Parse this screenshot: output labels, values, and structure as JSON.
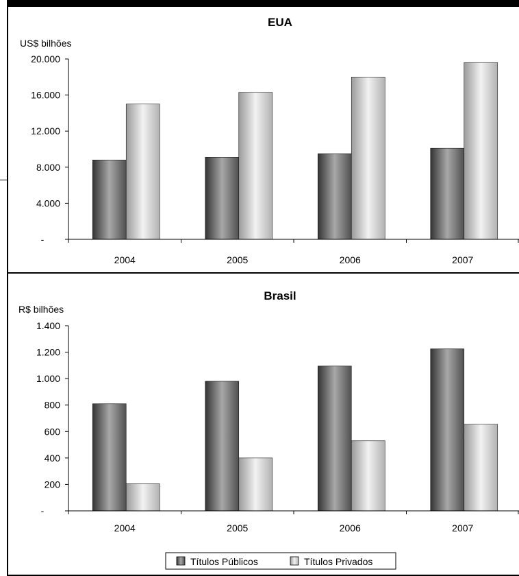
{
  "chart_data": [
    {
      "type": "bar",
      "title": "EUA",
      "ylabel": "US$ bilhões",
      "categories": [
        "2004",
        "2005",
        "2006",
        "2007"
      ],
      "ylim": [
        0,
        20000
      ],
      "yticks": [
        "-",
        "4.000",
        "8.000",
        "12.000",
        "16.000",
        "20.000"
      ],
      "series": [
        {
          "name": "Títulos Públicos",
          "values": [
            8800,
            9100,
            9500,
            10100
          ]
        },
        {
          "name": "Títulos Privados",
          "values": [
            15000,
            16300,
            18000,
            19600
          ]
        }
      ]
    },
    {
      "type": "bar",
      "title": "Brasil",
      "ylabel": "R$ bilhões",
      "categories": [
        "2004",
        "2005",
        "2006",
        "2007"
      ],
      "ylim": [
        0,
        1400
      ],
      "yticks": [
        "-",
        "200",
        "400",
        "600",
        "800",
        "1.000",
        "1.200",
        "1.400"
      ],
      "series": [
        {
          "name": "Títulos Públicos",
          "values": [
            810,
            980,
            1095,
            1225
          ]
        },
        {
          "name": "Títulos Privados",
          "values": [
            205,
            400,
            530,
            655
          ]
        }
      ]
    }
  ],
  "legend": {
    "position": "bottom",
    "items": [
      "Títulos Públicos",
      "Títulos Privados"
    ]
  }
}
